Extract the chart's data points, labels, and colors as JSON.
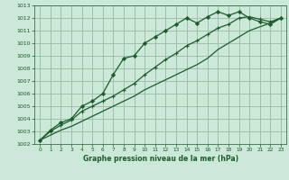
{
  "title": "Graphe pression niveau de la mer (hPa)",
  "bg_color": "#cce8d8",
  "grid_color": "#9dbfac",
  "line_color": "#1a5c2a",
  "x_ticks": [
    0,
    1,
    2,
    3,
    4,
    5,
    6,
    7,
    8,
    9,
    10,
    11,
    12,
    13,
    14,
    15,
    16,
    17,
    18,
    19,
    20,
    21,
    22,
    23
  ],
  "ylim": [
    1002,
    1013
  ],
  "y_ticks": [
    1002,
    1003,
    1004,
    1005,
    1006,
    1007,
    1008,
    1009,
    1010,
    1011,
    1012,
    1013
  ],
  "series1": [
    1002.3,
    1003.1,
    1003.7,
    1004.0,
    1005.0,
    1005.4,
    1006.0,
    1007.5,
    1008.8,
    1009.0,
    1010.0,
    1010.5,
    1011.0,
    1011.5,
    1012.0,
    1011.6,
    1012.1,
    1012.5,
    1012.2,
    1012.5,
    1012.0,
    1011.7,
    1011.5,
    1012.0
  ],
  "series2": [
    1002.3,
    1003.0,
    1003.5,
    1003.9,
    1004.6,
    1005.0,
    1005.4,
    1005.8,
    1006.3,
    1006.8,
    1007.5,
    1008.1,
    1008.7,
    1009.2,
    1009.8,
    1010.2,
    1010.7,
    1011.2,
    1011.5,
    1012.0,
    1012.1,
    1011.9,
    1011.7,
    1012.0
  ],
  "series3": [
    1002.3,
    1002.7,
    1003.1,
    1003.4,
    1003.8,
    1004.2,
    1004.6,
    1005.0,
    1005.4,
    1005.8,
    1006.3,
    1006.7,
    1007.1,
    1007.5,
    1007.9,
    1008.3,
    1008.8,
    1009.5,
    1010.0,
    1010.5,
    1011.0,
    1011.3,
    1011.6,
    1012.0
  ]
}
